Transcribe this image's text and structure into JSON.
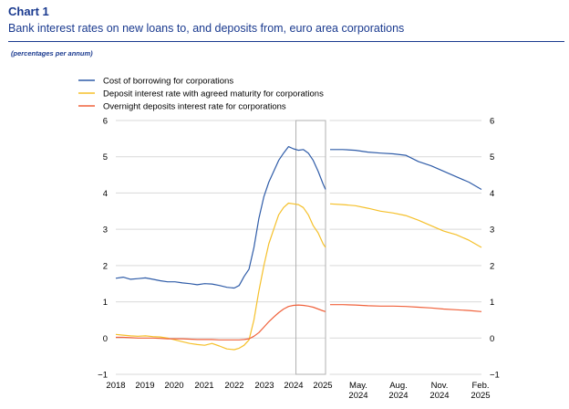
{
  "chart_data": {
    "type": "line",
    "title": "Chart 1",
    "subtitle": "Bank interest rates on new loans to, and deposits from, euro area corporations",
    "unit": "(percentages per annum)",
    "ylim": [
      -1,
      6
    ],
    "yticks": [
      "-1",
      "0",
      "1",
      "2",
      "3",
      "4",
      "5",
      "6"
    ],
    "grid": true,
    "legend_position": "top-left",
    "colors": {
      "cost_of_borrowing": "#2f5ca8",
      "deposit_agreed_maturity": "#f5c02a",
      "overnight_deposits": "#f0623c",
      "grid": "#d9d9d9",
      "zoom_box": "#b0b0b0"
    },
    "panels": [
      {
        "name": "long-run",
        "xlim": [
          "2018-01",
          "2025-02"
        ],
        "xticks": [
          "2018",
          "2019",
          "2020",
          "2021",
          "2022",
          "2023",
          "2024",
          "2025"
        ],
        "x": [
          "2018-01",
          "2018-04",
          "2018-07",
          "2018-10",
          "2019-01",
          "2019-04",
          "2019-07",
          "2019-10",
          "2020-01",
          "2020-04",
          "2020-07",
          "2020-10",
          "2021-01",
          "2021-04",
          "2021-07",
          "2021-10",
          "2022-01",
          "2022-03",
          "2022-05",
          "2022-07",
          "2022-09",
          "2022-11",
          "2023-01",
          "2023-03",
          "2023-05",
          "2023-07",
          "2023-09",
          "2023-11",
          "2024-01",
          "2024-03",
          "2024-05",
          "2024-07",
          "2024-09",
          "2024-11",
          "2025-01",
          "2025-02"
        ],
        "series": [
          {
            "name": "Cost of borrowing for corporations",
            "key": "cost_of_borrowing",
            "values": [
              1.65,
              1.68,
              1.62,
              1.64,
              1.66,
              1.62,
              1.58,
              1.55,
              1.55,
              1.52,
              1.5,
              1.47,
              1.5,
              1.49,
              1.45,
              1.4,
              1.38,
              1.45,
              1.7,
              1.9,
              2.5,
              3.3,
              3.9,
              4.3,
              4.6,
              4.9,
              5.1,
              5.28,
              5.22,
              5.18,
              5.2,
              5.1,
              4.9,
              4.6,
              4.25,
              4.1
            ]
          },
          {
            "name": "Deposit interest rate with agreed maturity for corporations",
            "key": "deposit_agreed_maturity",
            "values": [
              0.1,
              0.08,
              0.06,
              0.05,
              0.06,
              0.04,
              0.03,
              0.0,
              -0.05,
              -0.1,
              -0.15,
              -0.18,
              -0.2,
              -0.15,
              -0.22,
              -0.3,
              -0.32,
              -0.28,
              -0.2,
              -0.05,
              0.5,
              1.3,
              2.0,
              2.6,
              3.0,
              3.4,
              3.6,
              3.72,
              3.7,
              3.68,
              3.6,
              3.4,
              3.1,
              2.9,
              2.6,
              2.5
            ]
          },
          {
            "name": "Overnight deposits interest rate for corporations",
            "key": "overnight_deposits",
            "values": [
              0.02,
              0.02,
              0.01,
              0.0,
              0.0,
              0.0,
              -0.01,
              -0.02,
              -0.02,
              -0.02,
              -0.03,
              -0.04,
              -0.04,
              -0.04,
              -0.05,
              -0.05,
              -0.05,
              -0.05,
              -0.04,
              -0.02,
              0.05,
              0.15,
              0.3,
              0.45,
              0.58,
              0.7,
              0.8,
              0.87,
              0.9,
              0.91,
              0.9,
              0.88,
              0.85,
              0.8,
              0.75,
              0.73
            ]
          }
        ]
      },
      {
        "name": "recent",
        "xlim": [
          "2024-02",
          "2025-02"
        ],
        "xticks": [
          [
            "May.",
            "2024"
          ],
          [
            "Aug.",
            "2024"
          ],
          [
            "Nov.",
            "2024"
          ],
          [
            "Feb.",
            "2025"
          ]
        ],
        "x": [
          "2024-02",
          "2024-03",
          "2024-04",
          "2024-05",
          "2024-06",
          "2024-07",
          "2024-08",
          "2024-09",
          "2024-10",
          "2024-11",
          "2024-12",
          "2025-01",
          "2025-02"
        ],
        "series": [
          {
            "name": "Cost of borrowing for corporations",
            "key": "cost_of_borrowing",
            "values": [
              5.2,
              5.2,
              5.18,
              5.13,
              5.1,
              5.08,
              5.04,
              4.87,
              4.75,
              4.6,
              4.45,
              4.3,
              4.1
            ]
          },
          {
            "name": "Deposit interest rate with agreed maturity for corporations",
            "key": "deposit_agreed_maturity",
            "values": [
              3.7,
              3.68,
              3.65,
              3.58,
              3.5,
              3.45,
              3.38,
              3.25,
              3.1,
              2.95,
              2.85,
              2.7,
              2.5
            ]
          },
          {
            "name": "Overnight deposits interest rate for corporations",
            "key": "overnight_deposits",
            "values": [
              0.92,
              0.92,
              0.91,
              0.89,
              0.88,
              0.88,
              0.87,
              0.85,
              0.83,
              0.8,
              0.78,
              0.76,
              0.73
            ]
          }
        ]
      }
    ]
  }
}
